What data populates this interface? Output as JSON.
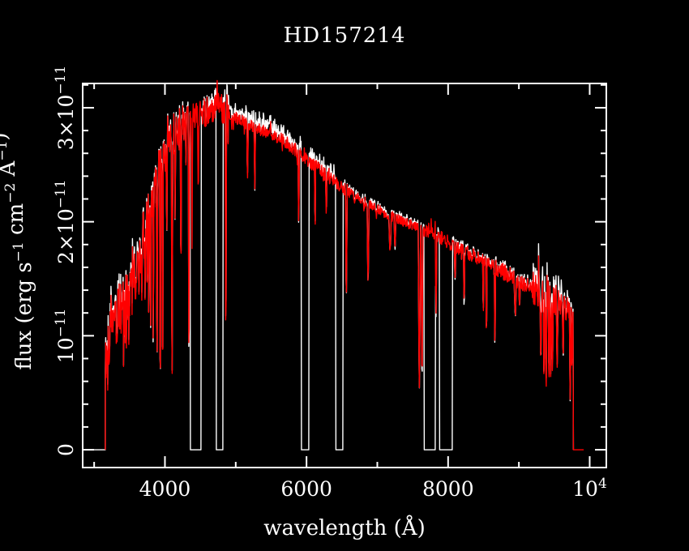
{
  "chart_data": {
    "type": "line",
    "title": "HD157214",
    "xlabel": "wavelength (Å)",
    "ylabel_parts": [
      [
        "t",
        "flux (erg s"
      ],
      [
        "s",
        "−1"
      ],
      [
        "t",
        " cm"
      ],
      [
        "s",
        "−2"
      ],
      [
        "t",
        " Å"
      ],
      [
        "s",
        "−1"
      ],
      [
        "t",
        ")"
      ]
    ],
    "background": "#000000",
    "axis_color": "#ffffff",
    "grid": false,
    "legend": "none",
    "xlim": [
      2838,
      10235
    ],
    "ylim": [
      -0.156,
      3.213
    ],
    "y_unit": "1e-11 erg s-1 cm-2 A-1",
    "x_major_ticks": [
      {
        "v": 4000,
        "parts": [
          [
            "t",
            "4000"
          ]
        ]
      },
      {
        "v": 6000,
        "parts": [
          [
            "t",
            "6000"
          ]
        ]
      },
      {
        "v": 8000,
        "parts": [
          [
            "t",
            "8000"
          ]
        ]
      },
      {
        "v": 10000,
        "parts": [
          [
            "t",
            "10"
          ],
          [
            "s",
            "4"
          ]
        ]
      }
    ],
    "x_minor_ticks": [
      3000,
      5000,
      7000,
      9000
    ],
    "y_major_ticks": [
      {
        "v": 0,
        "parts": [
          [
            "t",
            "0"
          ]
        ]
      },
      {
        "v": 1,
        "parts": [
          [
            "t",
            "10"
          ],
          [
            "s",
            "−11"
          ]
        ]
      },
      {
        "v": 2,
        "parts": [
          [
            "t",
            "2×10"
          ],
          [
            "s",
            "−11"
          ]
        ]
      },
      {
        "v": 3,
        "parts": [
          [
            "t",
            "3×10"
          ],
          [
            "s",
            "−11"
          ]
        ]
      }
    ],
    "y_minor_step": 0.2,
    "series": [
      {
        "name": "underlying-spectrum",
        "color": "#ffffff"
      },
      {
        "name": "overplotted-spectrum",
        "color": "#ff0000"
      }
    ],
    "coverage": {
      "start": 3158,
      "end": 9770,
      "white_zero_lead_start": 2840,
      "red_zero_tail_end": 9915
    },
    "white_gaps": [
      [
        4357,
        4512
      ],
      [
        4722,
        4820
      ],
      [
        5925,
        6035
      ],
      [
        6410,
        6517
      ],
      [
        7659,
        7822
      ],
      [
        7878,
        8062
      ]
    ],
    "envelope": [
      [
        3158,
        0.8
      ],
      [
        3220,
        1.05
      ],
      [
        3300,
        1.15
      ],
      [
        3400,
        1.25
      ],
      [
        3500,
        1.3
      ],
      [
        3600,
        1.45
      ],
      [
        3650,
        1.6
      ],
      [
        3700,
        1.85
      ],
      [
        3750,
        2.0
      ],
      [
        3800,
        2.15
      ],
      [
        3850,
        2.25
      ],
      [
        3900,
        2.4
      ],
      [
        3950,
        2.5
      ],
      [
        4000,
        2.6
      ],
      [
        4050,
        2.7
      ],
      [
        4100,
        2.75
      ],
      [
        4150,
        2.8
      ],
      [
        4250,
        2.85
      ],
      [
        4350,
        2.9
      ],
      [
        4450,
        2.92
      ],
      [
        4550,
        2.95
      ],
      [
        4650,
        3.0
      ],
      [
        4750,
        3.02
      ],
      [
        4850,
        2.98
      ],
      [
        4950,
        2.92
      ],
      [
        5100,
        2.88
      ],
      [
        5300,
        2.82
      ],
      [
        5500,
        2.78
      ],
      [
        5700,
        2.7
      ],
      [
        5900,
        2.6
      ],
      [
        6100,
        2.5
      ],
      [
        6300,
        2.4
      ],
      [
        6500,
        2.3
      ],
      [
        6700,
        2.22
      ],
      [
        6900,
        2.15
      ],
      [
        7100,
        2.08
      ],
      [
        7300,
        2.02
      ],
      [
        7500,
        1.97
      ],
      [
        7700,
        1.92
      ],
      [
        7900,
        1.86
      ],
      [
        8100,
        1.78
      ],
      [
        8300,
        1.72
      ],
      [
        8500,
        1.66
      ],
      [
        8700,
        1.58
      ],
      [
        8900,
        1.52
      ],
      [
        9100,
        1.45
      ],
      [
        9300,
        1.36
      ],
      [
        9450,
        1.38
      ],
      [
        9600,
        1.28
      ],
      [
        9770,
        1.15
      ]
    ],
    "noise_bands": [
      [
        3158,
        3700,
        0.26
      ],
      [
        3700,
        4300,
        0.2
      ],
      [
        4300,
        4900,
        0.13
      ],
      [
        4900,
        5800,
        0.055
      ],
      [
        5800,
        6600,
        0.06
      ],
      [
        6600,
        7600,
        0.045
      ],
      [
        7600,
        8600,
        0.06
      ],
      [
        8600,
        9200,
        0.08
      ],
      [
        9200,
        9560,
        0.16
      ],
      [
        9560,
        9780,
        0.1
      ]
    ],
    "white_extra_bands": [
      [
        3158,
        3750,
        0.1
      ],
      [
        3750,
        4600,
        0.05
      ],
      [
        4600,
        6550,
        0.11
      ],
      [
        6550,
        9200,
        0.04
      ],
      [
        9200,
        9700,
        0.14
      ],
      [
        9700,
        9780,
        0.05
      ]
    ],
    "absorption_lines": [
      [
        3720,
        1.3,
        6
      ],
      [
        3750,
        1.35,
        6
      ],
      [
        3771,
        1.2,
        6
      ],
      [
        3798,
        1.05,
        7
      ],
      [
        3835,
        0.9,
        7
      ],
      [
        3889,
        0.75,
        8
      ],
      [
        3934,
        0.42,
        8
      ],
      [
        3968,
        0.52,
        8
      ],
      [
        4026,
        1.75,
        6
      ],
      [
        4101,
        0.55,
        9
      ],
      [
        4144,
        2.0,
        6
      ],
      [
        4226,
        1.45,
        7
      ],
      [
        4340,
        0.68,
        9
      ],
      [
        4383,
        1.75,
        7
      ],
      [
        4472,
        2.1,
        6
      ],
      [
        4861,
        0.9,
        9
      ],
      [
        5167,
        2.35,
        9
      ],
      [
        5270,
        2.3,
        8
      ],
      [
        5890,
        2.02,
        9
      ],
      [
        6122,
        1.9,
        7
      ],
      [
        6280,
        2.05,
        9
      ],
      [
        6563,
        1.31,
        10
      ],
      [
        6870,
        1.48,
        12
      ],
      [
        7180,
        1.72,
        16
      ],
      [
        7250,
        1.78,
        12
      ],
      [
        7594,
        0.55,
        14
      ],
      [
        7632,
        0.6,
        11
      ],
      [
        7830,
        1.2,
        10
      ],
      [
        8100,
        1.5,
        9
      ],
      [
        8227,
        1.3,
        9
      ],
      [
        8498,
        1.15,
        7
      ],
      [
        8542,
        0.95,
        8
      ],
      [
        8662,
        0.92,
        8
      ],
      [
        8950,
        1.18,
        14
      ],
      [
        9010,
        1.25,
        10
      ],
      [
        9310,
        0.78,
        10
      ],
      [
        9355,
        0.6,
        9
      ],
      [
        9385,
        0.5,
        9
      ],
      [
        9425,
        0.55,
        9
      ],
      [
        9450,
        0.66,
        8
      ],
      [
        9475,
        0.6,
        8
      ],
      [
        9540,
        0.72,
        10
      ],
      [
        9625,
        0.78,
        9
      ],
      [
        9725,
        0.42,
        9
      ],
      [
        9750,
        0.65,
        6
      ]
    ]
  }
}
